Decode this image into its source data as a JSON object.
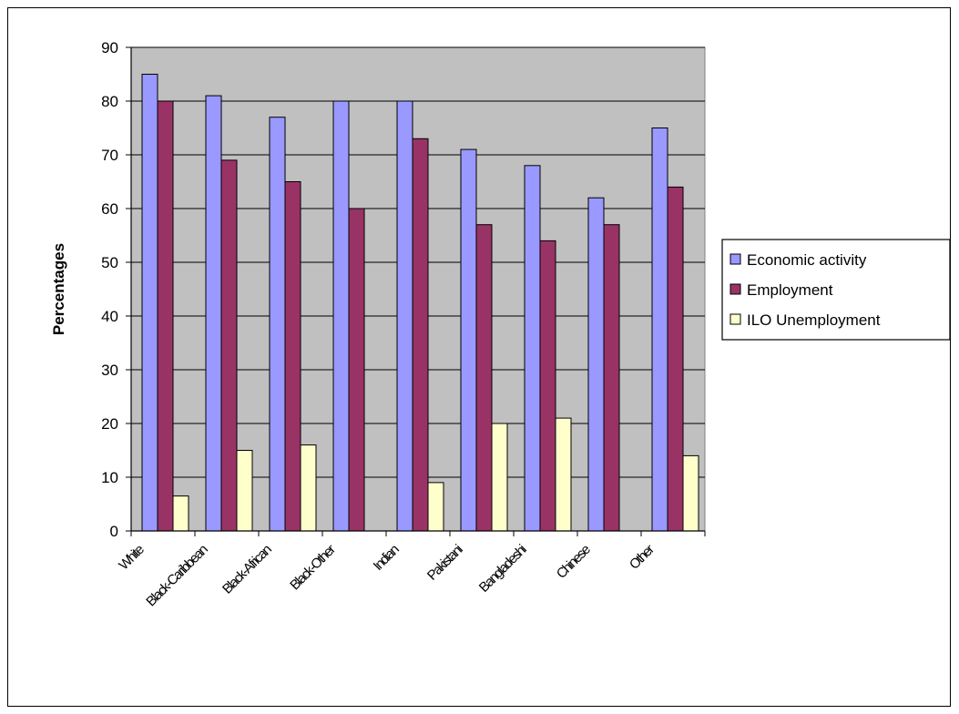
{
  "chart_data": {
    "type": "bar",
    "title": "",
    "xlabel": "",
    "ylabel": "Percentages",
    "ylim": [
      0,
      90
    ],
    "yticks": [
      0,
      10,
      20,
      30,
      40,
      50,
      60,
      70,
      80,
      90
    ],
    "grid": true,
    "legend_position": "right",
    "categories": [
      "White",
      "Black-Caribbean",
      "Black-African",
      "Black-Other",
      "Indian",
      "Pakistani",
      "Bangladeshi",
      "Chinese",
      "Other"
    ],
    "series": [
      {
        "name": "Economic activity",
        "color": "#9999ff",
        "values": [
          85,
          81,
          77,
          80,
          80,
          71,
          68,
          62,
          75
        ]
      },
      {
        "name": "Employment",
        "color": "#993366",
        "values": [
          80,
          69,
          65,
          60,
          73,
          57,
          54,
          57,
          64
        ]
      },
      {
        "name": "ILO Unemployment",
        "color": "#ffffcc",
        "values": [
          6.5,
          15,
          16,
          null,
          9,
          20,
          21,
          null,
          14
        ]
      }
    ],
    "plot_background": "#c0c0c0"
  }
}
